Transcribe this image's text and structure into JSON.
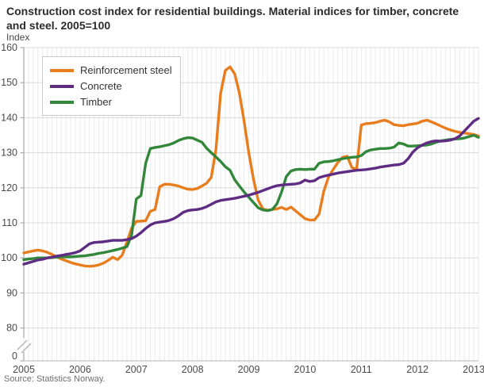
{
  "header": {
    "title": "Construction cost index for residential buildings. Material indices for timber, concrete and steel. 2005=100"
  },
  "footer": {
    "source": "Source: Statistics Norway."
  },
  "chart_data": {
    "type": "line",
    "title": "Construction cost index for residential buildings. Material indices for timber, concrete and steel. 2005=100",
    "xlabel": "",
    "ylabel": "Index",
    "x_unit": "month",
    "x_start_year": 2005,
    "x_tick_labels": [
      "2005",
      "2006",
      "2007",
      "2008",
      "2009",
      "2010",
      "2011",
      "2012",
      "2013"
    ],
    "y_ticks": [
      160,
      150,
      140,
      130,
      120,
      110,
      100,
      90,
      80
    ],
    "zero_tick_label": "0",
    "ylim": [
      80,
      160
    ],
    "axis_break_to_zero": true,
    "grid": true,
    "legend_position": "top-left",
    "series": [
      {
        "name": "Reinforcement steel",
        "color": "#e87d1e",
        "values": [
          101.4,
          101.7,
          102.0,
          102.2,
          102.0,
          101.6,
          101.0,
          100.3,
          99.7,
          99.2,
          98.7,
          98.3,
          98.0,
          97.7,
          97.6,
          97.7,
          98.0,
          98.5,
          99.3,
          100.2,
          99.5,
          100.8,
          104.5,
          108.5,
          110.4,
          110.5,
          110.6,
          113.3,
          113.8,
          120.3,
          121.0,
          121.0,
          120.8,
          120.5,
          120.0,
          119.6,
          119.5,
          119.8,
          120.5,
          121.3,
          123.0,
          131.0,
          147.0,
          153.5,
          154.5,
          152.5,
          147.0,
          139.0,
          130.0,
          122.5,
          116.5,
          114.0,
          113.6,
          113.8,
          114.0,
          114.4,
          113.8,
          114.5,
          113.4,
          112.3,
          111.2,
          110.8,
          110.8,
          112.5,
          119.0,
          123.0,
          125.2,
          127.2,
          128.7,
          129.0,
          125.8,
          125.2,
          137.9,
          138.3,
          138.4,
          138.6,
          139.0,
          139.3,
          138.8,
          138.0,
          137.8,
          137.7,
          138.0,
          138.2,
          138.4,
          139.0,
          139.3,
          138.8,
          138.2,
          137.6,
          137.0,
          136.5,
          136.1,
          135.8,
          135.6,
          135.4,
          135.2,
          134.8
        ]
      },
      {
        "name": "Concrete",
        "color": "#5f2c83",
        "values": [
          98.2,
          98.6,
          99.0,
          99.4,
          99.6,
          100.0,
          100.2,
          100.5,
          100.7,
          101.0,
          101.2,
          101.5,
          102.0,
          103.0,
          104.0,
          104.4,
          104.5,
          104.6,
          104.8,
          105.0,
          105.0,
          105.0,
          105.2,
          105.5,
          106.2,
          107.2,
          108.4,
          109.4,
          110.0,
          110.2,
          110.4,
          110.7,
          111.2,
          112.0,
          113.0,
          113.5,
          113.7,
          113.8,
          114.1,
          114.6,
          115.3,
          116.0,
          116.4,
          116.6,
          116.8,
          117.0,
          117.3,
          117.6,
          117.9,
          118.3,
          118.7,
          119.2,
          119.7,
          120.2,
          120.6,
          120.8,
          120.9,
          121.0,
          121.1,
          121.4,
          122.2,
          121.8,
          122.0,
          122.9,
          123.3,
          123.6,
          123.9,
          124.2,
          124.4,
          124.6,
          124.8,
          125.0,
          125.1,
          125.2,
          125.4,
          125.6,
          125.9,
          126.1,
          126.3,
          126.5,
          126.6,
          127.0,
          128.3,
          130.2,
          131.4,
          132.2,
          132.8,
          133.2,
          133.4,
          133.3,
          133.4,
          133.6,
          134.0,
          134.8,
          136.2,
          137.6,
          139.0,
          139.8
        ]
      },
      {
        "name": "Timber",
        "color": "#33873b",
        "values": [
          99.5,
          99.7,
          99.8,
          100.0,
          100.0,
          100.0,
          100.1,
          100.2,
          100.3,
          100.3,
          100.3,
          100.4,
          100.5,
          100.6,
          100.8,
          101.0,
          101.3,
          101.5,
          101.8,
          102.1,
          102.4,
          102.8,
          103.2,
          106.5,
          116.8,
          117.8,
          127.0,
          131.2,
          131.5,
          131.7,
          132.0,
          132.3,
          132.8,
          133.5,
          134.0,
          134.3,
          134.2,
          133.6,
          133.0,
          131.3,
          130.0,
          128.8,
          127.5,
          126.0,
          125.0,
          122.3,
          120.5,
          118.8,
          117.3,
          115.8,
          114.3,
          113.7,
          113.5,
          113.8,
          115.4,
          118.8,
          123.2,
          124.8,
          125.2,
          125.3,
          125.2,
          125.3,
          125.3,
          127.0,
          127.4,
          127.5,
          127.7,
          128.0,
          128.3,
          128.5,
          128.7,
          128.8,
          129.2,
          130.3,
          130.8,
          131.0,
          131.2,
          131.2,
          131.3,
          131.6,
          132.8,
          132.5,
          131.9,
          131.9,
          132.0,
          132.1,
          132.2,
          132.5,
          133.0,
          133.4,
          133.6,
          133.8,
          133.9,
          134.0,
          134.2,
          134.6,
          135.0,
          134.4
        ]
      }
    ]
  }
}
